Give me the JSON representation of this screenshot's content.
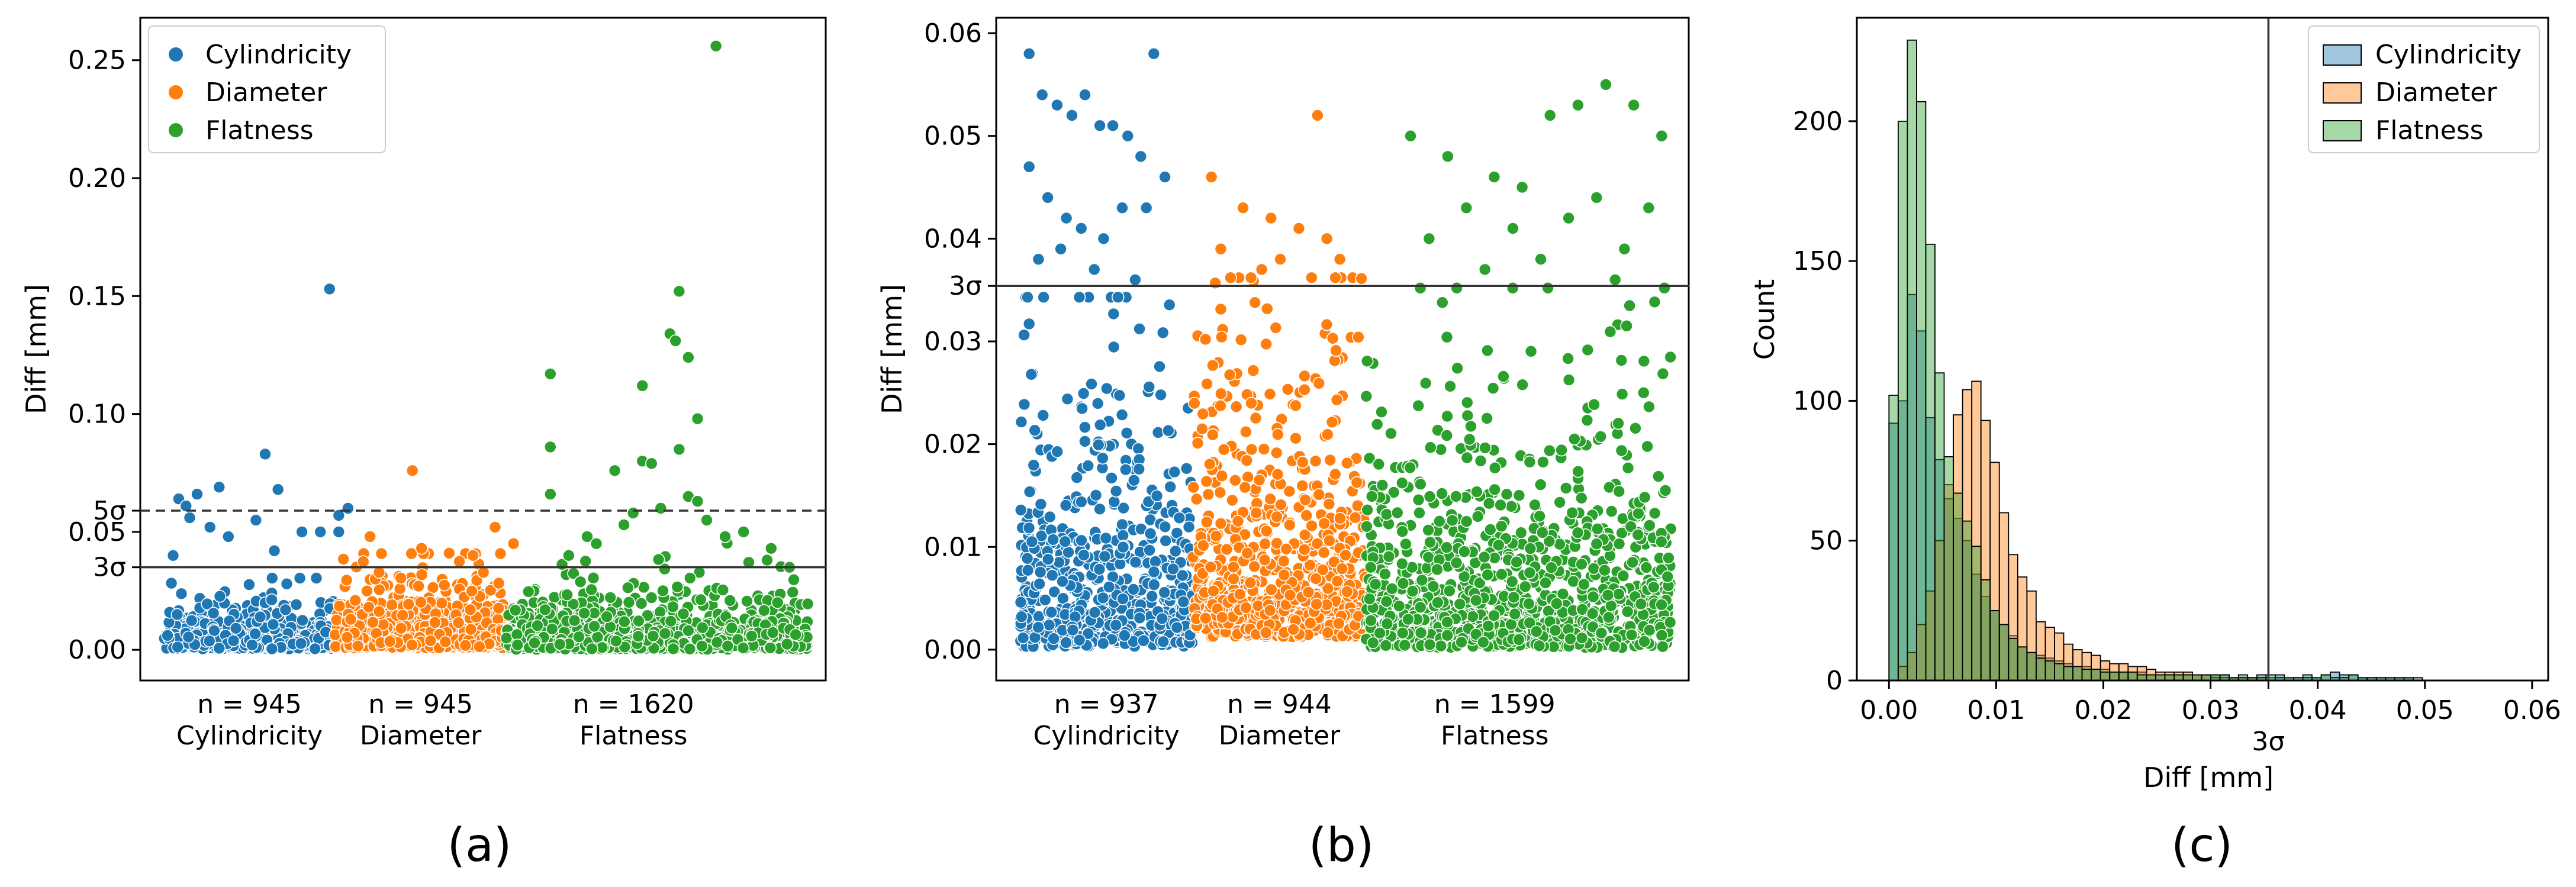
{
  "colors": {
    "cyl": "#1f77b4",
    "dia": "#ff7f0e",
    "flat": "#2ca02c"
  },
  "chart_data": [
    {
      "type": "scatter",
      "panel": "(a)",
      "ylabel": "Diff [mm]",
      "xlabel": "",
      "ylim": [
        -0.013,
        0.268
      ],
      "yticks": [
        0.0,
        0.05,
        0.1,
        0.15,
        0.2,
        0.25
      ],
      "ytick_labels": [
        "0.00",
        "0.05",
        "0.10",
        "0.15",
        "0.20",
        "0.25"
      ],
      "legend": {
        "placement": "top-left",
        "entries": [
          "Cylindricity",
          "Diameter",
          "Flatness"
        ]
      },
      "groups": [
        {
          "name": "Cylindricity",
          "n_label": "n = 945",
          "label": "Cylindricity",
          "x_range": [
            0.0,
            0.93
          ]
        },
        {
          "name": "Diameter",
          "n_label": "n = 945",
          "label": "Diameter",
          "x_range": [
            0.93,
            1.86
          ]
        },
        {
          "name": "Flatness",
          "n_label": "n = 1620",
          "label": "Flatness",
          "x_range": [
            1.86,
            3.5
          ]
        }
      ],
      "hlines": [
        {
          "value": 0.035,
          "label": "3σ",
          "style": "solid"
        },
        {
          "value": 0.059,
          "label": "5σ",
          "style": "dashed"
        }
      ],
      "outliers": [
        {
          "group": "Cylindricity",
          "points": [
            [
              0.08,
              0.064
            ],
            [
              0.12,
              0.061
            ],
            [
              0.18,
              0.066
            ],
            [
              0.3,
              0.069
            ],
            [
              0.55,
              0.083
            ],
            [
              0.62,
              0.068
            ],
            [
              0.9,
              0.153
            ],
            [
              0.14,
              0.056
            ],
            [
              0.25,
              0.052
            ],
            [
              0.5,
              0.055
            ],
            [
              0.75,
              0.05
            ],
            [
              1.0,
              0.06
            ],
            [
              0.95,
              0.05
            ],
            [
              0.85,
              0.05
            ],
            [
              0.05,
              0.04
            ],
            [
              0.35,
              0.048
            ],
            [
              0.6,
              0.042
            ],
            [
              0.95,
              0.057
            ]
          ]
        },
        {
          "group": "Diameter",
          "points": [
            [
              1.35,
              0.076
            ],
            [
              1.12,
              0.048
            ],
            [
              1.55,
              0.041
            ],
            [
              1.8,
              0.052
            ],
            [
              1.68,
              0.04
            ],
            [
              1.4,
              0.043
            ],
            [
              1.9,
              0.045
            ]
          ]
        },
        {
          "group": "Flatness",
          "points": [
            [
              2.1,
              0.117
            ],
            [
              2.1,
              0.086
            ],
            [
              2.1,
              0.066
            ],
            [
              2.3,
              0.048
            ],
            [
              2.45,
              0.076
            ],
            [
              2.55,
              0.058
            ],
            [
              2.6,
              0.112
            ],
            [
              2.6,
              0.08
            ],
            [
              2.65,
              0.079
            ],
            [
              2.75,
              0.134
            ],
            [
              2.8,
              0.152
            ],
            [
              2.85,
              0.124
            ],
            [
              2.9,
              0.098
            ],
            [
              2.78,
              0.131
            ],
            [
              2.8,
              0.085
            ],
            [
              2.85,
              0.065
            ],
            [
              2.9,
              0.063
            ],
            [
              3.0,
              0.256
            ],
            [
              2.35,
              0.045
            ],
            [
              2.5,
              0.053
            ],
            [
              2.95,
              0.055
            ],
            [
              3.15,
              0.05
            ],
            [
              3.3,
              0.043
            ],
            [
              2.7,
              0.06
            ],
            [
              3.05,
              0.048
            ],
            [
              3.4,
              0.035
            ],
            [
              2.2,
              0.04
            ]
          ]
        }
      ]
    },
    {
      "type": "scatter",
      "panel": "(b)",
      "ylabel": "Diff [mm]",
      "xlabel": "",
      "ylim": [
        -0.003,
        0.0615
      ],
      "yticks": [
        0.0,
        0.01,
        0.02,
        0.03,
        0.04,
        0.05,
        0.06
      ],
      "ytick_labels": [
        "0.00",
        "0.01",
        "0.02",
        "0.03",
        "0.04",
        "0.05",
        "0.06"
      ],
      "groups": [
        {
          "name": "Cylindricity",
          "n_label": "n = 937",
          "label": "Cylindricity",
          "x_range": [
            0.0,
            0.93
          ]
        },
        {
          "name": "Diameter",
          "n_label": "n = 944",
          "label": "Diameter",
          "x_range": [
            0.93,
            1.86
          ]
        },
        {
          "name": "Flatness",
          "n_label": "n = 1599",
          "label": "Flatness",
          "x_range": [
            1.86,
            3.5
          ]
        }
      ],
      "hlines": [
        {
          "value": 0.0354,
          "label": "3σ",
          "style": "solid"
        }
      ],
      "outliers": [
        {
          "group": "Cylindricity",
          "points": [
            [
              0.05,
              0.058
            ],
            [
              0.12,
              0.054
            ],
            [
              0.2,
              0.053
            ],
            [
              0.28,
              0.052
            ],
            [
              0.35,
              0.054
            ],
            [
              0.43,
              0.051
            ],
            [
              0.5,
              0.051
            ],
            [
              0.58,
              0.05
            ],
            [
              0.65,
              0.048
            ],
            [
              0.72,
              0.058
            ],
            [
              0.05,
              0.047
            ],
            [
              0.15,
              0.044
            ],
            [
              0.25,
              0.042
            ],
            [
              0.33,
              0.041
            ],
            [
              0.45,
              0.04
            ],
            [
              0.55,
              0.043
            ],
            [
              0.68,
              0.043
            ],
            [
              0.78,
              0.046
            ],
            [
              0.1,
              0.038
            ],
            [
              0.22,
              0.039
            ],
            [
              0.4,
              0.037
            ],
            [
              0.62,
              0.036
            ]
          ]
        },
        {
          "group": "Diameter",
          "points": [
            [
              1.03,
              0.046
            ],
            [
              1.2,
              0.043
            ],
            [
              1.35,
              0.042
            ],
            [
              1.5,
              0.041
            ],
            [
              1.65,
              0.04
            ],
            [
              1.6,
              0.052
            ],
            [
              1.4,
              0.038
            ],
            [
              1.08,
              0.039
            ],
            [
              1.3,
              0.037
            ],
            [
              1.72,
              0.038
            ]
          ]
        },
        {
          "group": "Flatness",
          "points": [
            [
              2.1,
              0.05
            ],
            [
              2.3,
              0.048
            ],
            [
              2.55,
              0.046
            ],
            [
              2.7,
              0.045
            ],
            [
              2.85,
              0.052
            ],
            [
              3.0,
              0.053
            ],
            [
              3.15,
              0.055
            ],
            [
              3.3,
              0.053
            ],
            [
              3.45,
              0.05
            ],
            [
              2.2,
              0.04
            ],
            [
              2.4,
              0.043
            ],
            [
              2.65,
              0.041
            ],
            [
              2.95,
              0.042
            ],
            [
              3.1,
              0.044
            ],
            [
              3.25,
              0.039
            ],
            [
              3.38,
              0.043
            ],
            [
              2.5,
              0.037
            ],
            [
              2.8,
              0.038
            ],
            [
              3.2,
              0.036
            ]
          ]
        }
      ]
    },
    {
      "type": "histogram",
      "panel": "(c)",
      "xlabel": "Diff [mm]",
      "ylabel": "Count",
      "xlim": [
        -0.003,
        0.0615
      ],
      "ylim": [
        0,
        237
      ],
      "xticks": [
        0.0,
        0.01,
        0.02,
        0.03,
        0.04,
        0.05,
        0.06
      ],
      "xtick_labels": [
        "0.00",
        "0.01",
        "0.02",
        "0.03",
        "0.04",
        "0.05",
        "0.06"
      ],
      "yticks": [
        0,
        50,
        100,
        150,
        200
      ],
      "ytick_labels": [
        "0",
        "50",
        "100",
        "150",
        "200"
      ],
      "bin_start": 0.0,
      "bin_width": 0.000858,
      "vline": {
        "value": 0.0354,
        "label": "3σ"
      },
      "legend": {
        "placement": "top-right",
        "entries": [
          "Cylindricity",
          "Diameter",
          "Flatness"
        ]
      },
      "series": [
        {
          "name": "Cylindricity",
          "counts": [
            92,
            100,
            138,
            125,
            94,
            79,
            65,
            58,
            50,
            38,
            30,
            25,
            20,
            16,
            12,
            10,
            9,
            8,
            7,
            6,
            5,
            5,
            4,
            4,
            3,
            3,
            3,
            3,
            2,
            2,
            2,
            2,
            2,
            2,
            2,
            2,
            2,
            1,
            2,
            1,
            2,
            1,
            2,
            1,
            1,
            2,
            1,
            2,
            3,
            2,
            2,
            1,
            1,
            1,
            1,
            1,
            1,
            1,
            0,
            0,
            0,
            0,
            0,
            0,
            0,
            0,
            0,
            0
          ]
        },
        {
          "name": "Diameter",
          "counts": [
            0,
            5,
            10,
            20,
            32,
            50,
            70,
            95,
            104,
            107,
            93,
            78,
            60,
            45,
            37,
            32,
            21,
            19,
            17,
            13,
            11,
            10,
            9,
            7,
            6,
            6,
            5,
            5,
            4,
            3,
            3,
            3,
            3,
            2,
            2,
            1,
            1,
            1,
            1,
            1,
            1,
            0,
            0,
            0,
            0,
            0,
            0,
            0,
            0,
            0,
            0,
            0,
            0,
            0,
            0,
            0,
            0,
            0,
            0,
            0,
            0,
            0,
            0,
            0,
            0,
            0,
            0,
            0
          ]
        },
        {
          "name": "Flatness",
          "counts": [
            102,
            200,
            229,
            207,
            156,
            110,
            80,
            67,
            57,
            48,
            36,
            25,
            20,
            15,
            12,
            10,
            8,
            7,
            6,
            5,
            5,
            4,
            4,
            3,
            3,
            3,
            3,
            2,
            2,
            2,
            2,
            2,
            2,
            2,
            2,
            2,
            2,
            1,
            1,
            1,
            1,
            2,
            1,
            1,
            1,
            1,
            1,
            2,
            1,
            1,
            2,
            1,
            1,
            1,
            1,
            1,
            1,
            0,
            0,
            0,
            0,
            0,
            0,
            0,
            0,
            0,
            0,
            0
          ]
        }
      ]
    }
  ],
  "captions": [
    "(a)",
    "(b)",
    "(c)"
  ]
}
